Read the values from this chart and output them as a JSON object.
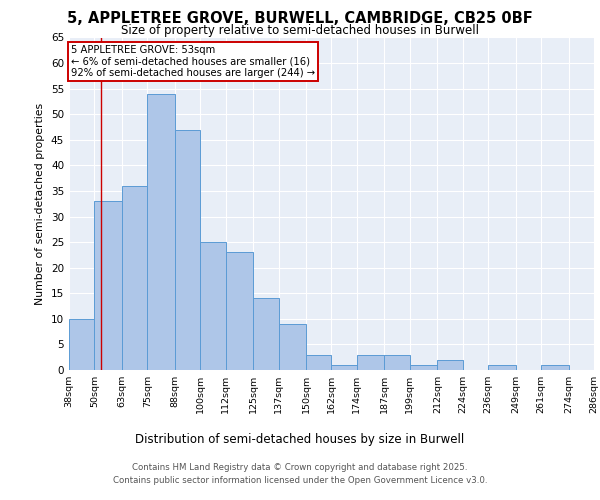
{
  "title_line1": "5, APPLETREE GROVE, BURWELL, CAMBRIDGE, CB25 0BF",
  "title_line2": "Size of property relative to semi-detached houses in Burwell",
  "xlabel": "Distribution of semi-detached houses by size in Burwell",
  "ylabel": "Number of semi-detached properties",
  "bar_edges": [
    38,
    50,
    63,
    75,
    88,
    100,
    112,
    125,
    137,
    150,
    162,
    174,
    187,
    199,
    212,
    224,
    236,
    249,
    261,
    274,
    286
  ],
  "bar_heights": [
    10,
    33,
    36,
    54,
    47,
    25,
    23,
    14,
    9,
    3,
    1,
    3,
    3,
    1,
    2,
    0,
    1,
    0,
    1,
    0
  ],
  "bar_color": "#aec6e8",
  "bar_edge_color": "#5b9bd5",
  "property_line_x": 53,
  "annotation_text": "5 APPLETREE GROVE: 53sqm\n← 6% of semi-detached houses are smaller (16)\n92% of semi-detached houses are larger (244) →",
  "annotation_box_color": "#ffffff",
  "annotation_border_color": "#cc0000",
  "line_color": "#cc0000",
  "ylim": [
    0,
    65
  ],
  "yticks": [
    0,
    5,
    10,
    15,
    20,
    25,
    30,
    35,
    40,
    45,
    50,
    55,
    60,
    65
  ],
  "background_color": "#e8eef7",
  "footer_line1": "Contains HM Land Registry data © Crown copyright and database right 2025.",
  "footer_line2": "Contains public sector information licensed under the Open Government Licence v3.0.",
  "tick_labels": [
    "38sqm",
    "50sqm",
    "63sqm",
    "75sqm",
    "88sqm",
    "100sqm",
    "112sqm",
    "125sqm",
    "137sqm",
    "150sqm",
    "162sqm",
    "174sqm",
    "187sqm",
    "199sqm",
    "212sqm",
    "224sqm",
    "236sqm",
    "249sqm",
    "261sqm",
    "274sqm",
    "286sqm"
  ]
}
